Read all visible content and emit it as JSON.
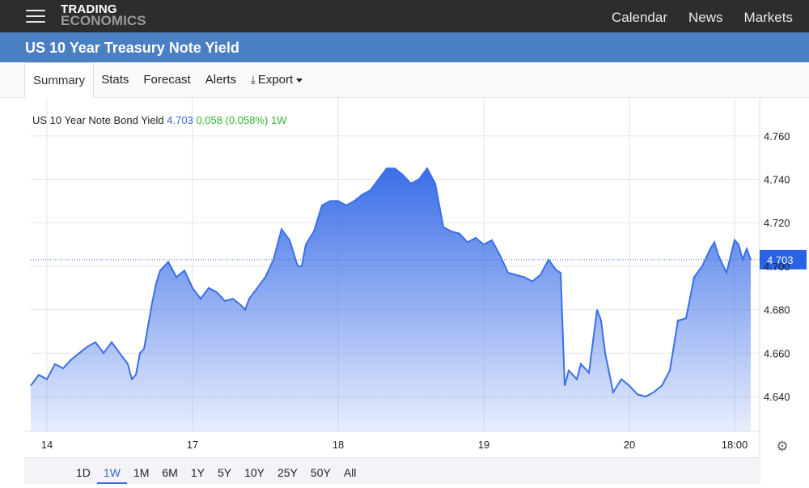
{
  "header": {
    "logo_line1": "TRADING",
    "logo_line2": "ECONOMICS",
    "nav": [
      "Calendar",
      "News",
      "Markets"
    ]
  },
  "page_title": "US 10 Year Treasury Note Yield",
  "tabs": [
    "Summary",
    "Stats",
    "Forecast",
    "Alerts",
    "Export"
  ],
  "active_tab": "Summary",
  "legend": {
    "name": "US 10 Year Note Bond Yield",
    "value": "4.703",
    "change": "0.058 (0.058%)",
    "period": "1W"
  },
  "ranges": [
    "1D",
    "1W",
    "1M",
    "6M",
    "1Y",
    "5Y",
    "10Y",
    "25Y",
    "50Y",
    "All"
  ],
  "active_range": "1W",
  "colors": {
    "line": "#3b6ee8",
    "accent": "#3a66d6",
    "positive": "#2cb52c",
    "titlebar": "#4a7fc1"
  },
  "icons": {
    "menu": "hamburger-icon",
    "download": "download-icon",
    "settings": "gear-icon"
  },
  "chart_data": {
    "type": "area",
    "title": "",
    "xlabel": "",
    "ylabel": "",
    "x_ticks": [
      "14",
      "17",
      "18",
      "19",
      "20",
      "18:00"
    ],
    "x_tick_t": [
      0.02,
      0.2,
      0.38,
      0.56,
      0.74,
      0.87
    ],
    "y_ticks": [
      4.64,
      4.66,
      4.68,
      4.7,
      4.72,
      4.74,
      4.76
    ],
    "y_tick_labels": [
      "4.640",
      "4.660",
      "4.680",
      "4.700",
      "4.720",
      "4.740",
      "4.760"
    ],
    "ylim": [
      4.624,
      4.77
    ],
    "xlim": [
      0,
      0.9
    ],
    "last_value": 4.703,
    "last_label": "4.703",
    "grid": true,
    "series": [
      {
        "x": [
          0.0,
          0.01,
          0.02,
          0.03,
          0.04,
          0.05,
          0.06,
          0.07,
          0.08,
          0.09,
          0.1,
          0.11,
          0.12,
          0.125,
          0.13,
          0.135,
          0.14,
          0.15,
          0.155,
          0.16,
          0.17,
          0.18,
          0.19,
          0.2,
          0.21,
          0.22,
          0.23,
          0.24,
          0.25,
          0.26,
          0.265,
          0.27,
          0.28,
          0.29,
          0.3,
          0.31,
          0.32,
          0.33,
          0.335,
          0.34,
          0.35,
          0.36,
          0.37,
          0.38,
          0.39,
          0.4,
          0.41,
          0.42,
          0.43,
          0.44,
          0.45,
          0.46,
          0.47,
          0.48,
          0.49,
          0.5,
          0.51,
          0.52,
          0.53,
          0.54,
          0.55,
          0.56,
          0.57,
          0.58,
          0.59,
          0.6,
          0.61,
          0.62,
          0.63,
          0.64,
          0.65,
          0.655,
          0.66,
          0.665,
          0.67,
          0.675,
          0.68,
          0.69,
          0.7,
          0.705,
          0.71,
          0.72,
          0.73,
          0.74,
          0.75,
          0.76,
          0.77,
          0.78,
          0.79,
          0.8,
          0.81,
          0.82,
          0.83,
          0.84,
          0.845,
          0.85,
          0.86,
          0.87,
          0.875,
          0.88,
          0.885,
          0.89
        ],
        "y": [
          4.645,
          4.65,
          4.648,
          4.655,
          4.653,
          4.657,
          4.66,
          4.663,
          4.665,
          4.66,
          4.665,
          4.66,
          4.655,
          4.648,
          4.65,
          4.66,
          4.662,
          4.683,
          4.692,
          4.698,
          4.702,
          4.695,
          4.698,
          4.69,
          4.685,
          4.69,
          4.688,
          4.684,
          4.685,
          4.682,
          4.68,
          4.685,
          4.69,
          4.695,
          4.703,
          4.717,
          4.712,
          4.7,
          4.7,
          4.71,
          4.716,
          4.728,
          4.73,
          4.73,
          4.728,
          4.73,
          4.733,
          4.735,
          4.74,
          4.745,
          4.745,
          4.742,
          4.738,
          4.74,
          4.745,
          4.738,
          4.718,
          4.716,
          4.715,
          4.711,
          4.713,
          4.71,
          4.712,
          4.705,
          4.697,
          4.696,
          4.695,
          4.693,
          4.696,
          4.703,
          4.698,
          4.697,
          4.645,
          4.652,
          4.65,
          4.648,
          4.655,
          4.651,
          4.68,
          4.675,
          4.66,
          4.642,
          4.648,
          4.645,
          4.641,
          4.64,
          4.642,
          4.645,
          4.652,
          4.675,
          4.676,
          4.695,
          4.7,
          4.708,
          4.711,
          4.705,
          4.697,
          4.712,
          4.71,
          4.703,
          4.708,
          4.703
        ]
      }
    ]
  }
}
